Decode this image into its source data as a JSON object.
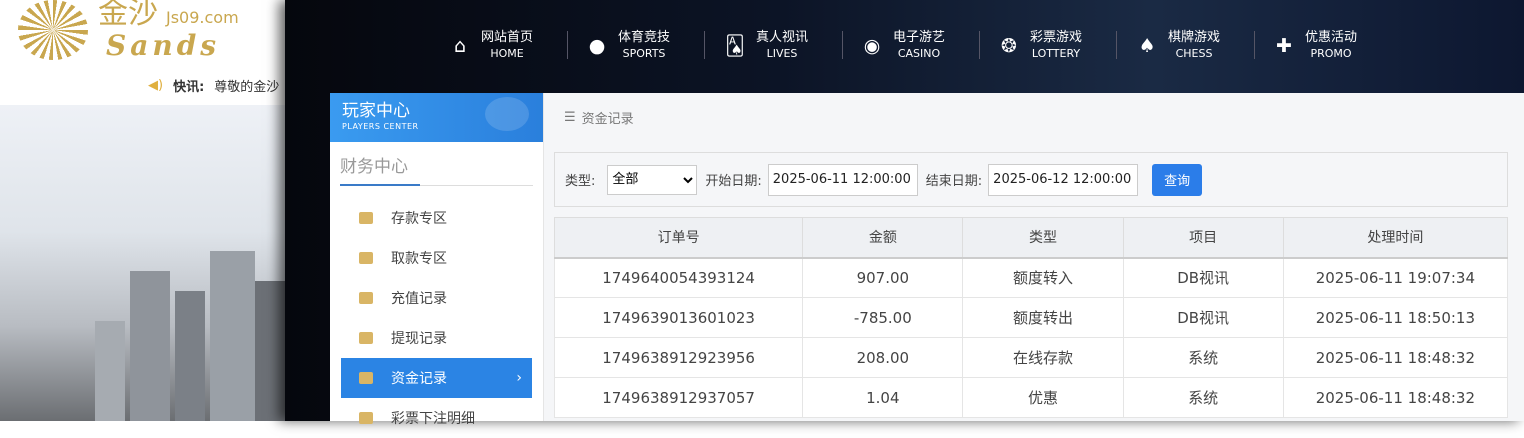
{
  "bg": {
    "logo_cn": "金沙",
    "logo_domain": "Js09.com",
    "logo_en": "Sands",
    "ticker_label": "快讯:",
    "ticker_text": "尊敬的金沙"
  },
  "nav": [
    {
      "cn": "网站首页",
      "en": "HOME",
      "icon": "home-icon",
      "glyph": "⌂"
    },
    {
      "cn": "体育竞技",
      "en": "SPORTS",
      "icon": "ball-icon",
      "glyph": "●"
    },
    {
      "cn": "真人视讯",
      "en": "LIVES",
      "icon": "cards-icon",
      "glyph": "🂡"
    },
    {
      "cn": "电子游艺",
      "en": "CASINO",
      "icon": "slot-icon",
      "glyph": "◉"
    },
    {
      "cn": "彩票游戏",
      "en": "LOTTERY",
      "icon": "lottery-balls-icon",
      "glyph": "❂"
    },
    {
      "cn": "棋牌游戏",
      "en": "CHESS",
      "icon": "spade-icon",
      "glyph": "♠"
    },
    {
      "cn": "优惠活动",
      "en": "PROMO",
      "icon": "gift-icon",
      "glyph": "✚"
    }
  ],
  "sidebar": {
    "title": "玩家中心",
    "subtitle": "PLAYERS CENTER",
    "section": "财务中心",
    "items": [
      {
        "label": "存款专区",
        "icon": "card-icon"
      },
      {
        "label": "取款专区",
        "icon": "hand-money-icon"
      },
      {
        "label": "充值记录",
        "icon": "money-bag-icon"
      },
      {
        "label": "提现记录",
        "icon": "wallet-icon"
      },
      {
        "label": "资金记录",
        "icon": "funds-icon",
        "active": true
      },
      {
        "label": "彩票下注明细",
        "icon": "list-icon"
      }
    ]
  },
  "main": {
    "breadcrumb": "资金记录",
    "filter": {
      "type_label": "类型:",
      "type_value": "全部",
      "start_label": "开始日期:",
      "start_value": "2025-06-11 12:00:00",
      "end_label": "结束日期:",
      "end_value": "2025-06-12 12:00:00",
      "query": "查询"
    },
    "table": {
      "headers": [
        "订单号",
        "金额",
        "类型",
        "项目",
        "处理时间"
      ],
      "rows": [
        [
          "1749640054393124",
          "907.00",
          "额度转入",
          "DB视讯",
          "2025-06-11 19:07:34"
        ],
        [
          "1749639013601023",
          "-785.00",
          "额度转出",
          "DB视讯",
          "2025-06-11 18:50:13"
        ],
        [
          "1749638912923956",
          "208.00",
          "在线存款",
          "系统",
          "2025-06-11 18:48:32"
        ],
        [
          "1749638912937057",
          "1.04",
          "优惠",
          "系统",
          "2025-06-11 18:48:32"
        ]
      ]
    }
  },
  "colors": {
    "accent": "#2b84e4",
    "gold": "#c9a74f"
  }
}
